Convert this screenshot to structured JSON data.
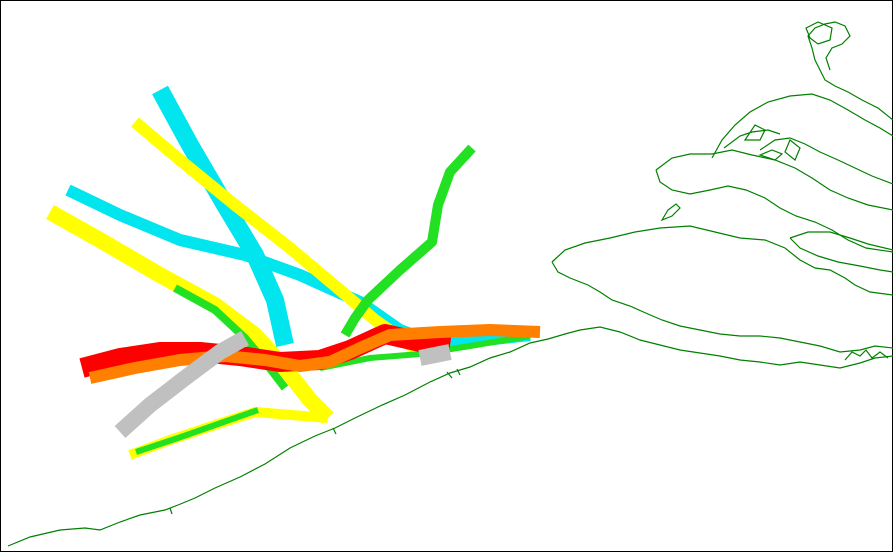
{
  "map": {
    "background_color": "#ffffff",
    "frame_color": "#000000",
    "coastline_color": "#008000",
    "track_colors": {
      "cyan": "#00e5ee",
      "yellow": "#ffff00",
      "green": "#22e022",
      "red": "#ff0000",
      "orange": "#ff7f00",
      "gray": "#c0c0c0"
    },
    "tracks": [
      {
        "name": "cyan-track-1",
        "color": "cyan"
      },
      {
        "name": "cyan-track-2",
        "color": "cyan"
      },
      {
        "name": "yellow-track-1",
        "color": "yellow"
      },
      {
        "name": "yellow-track-2",
        "color": "yellow"
      },
      {
        "name": "yellow-track-3",
        "color": "yellow"
      },
      {
        "name": "green-track-1",
        "color": "green"
      },
      {
        "name": "green-track-2",
        "color": "green"
      },
      {
        "name": "green-track-3",
        "color": "green"
      },
      {
        "name": "red-track",
        "color": "red"
      },
      {
        "name": "orange-track",
        "color": "orange"
      },
      {
        "name": "gray-track",
        "color": "gray"
      }
    ]
  }
}
